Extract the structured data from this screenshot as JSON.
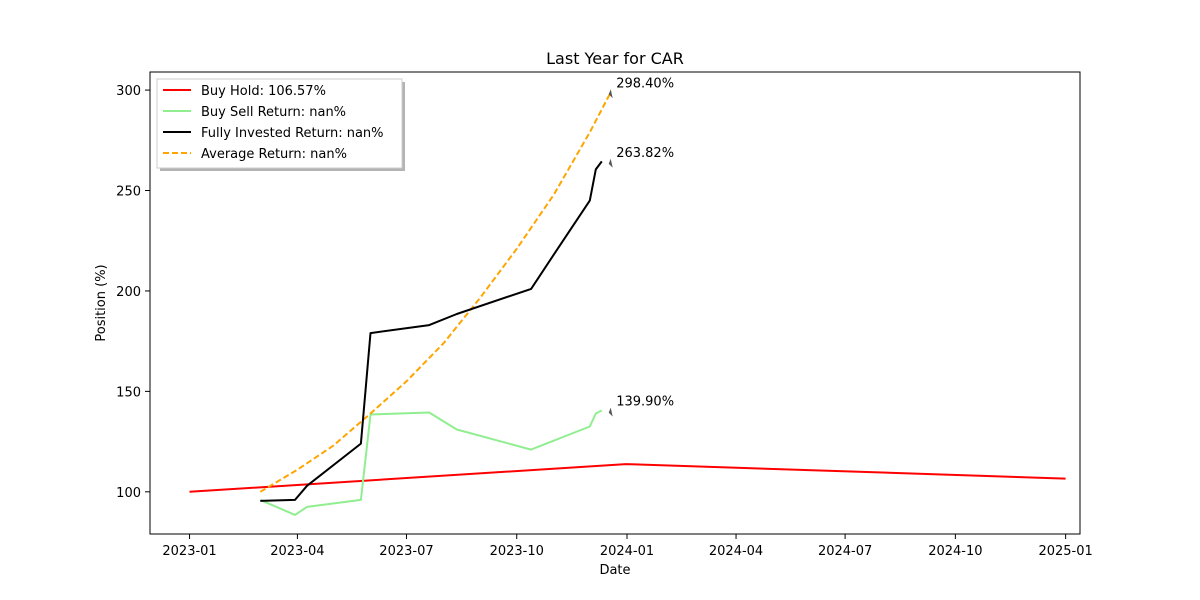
{
  "chart_data": {
    "type": "line",
    "title": "Last Year for CAR",
    "xlabel": "Date",
    "ylabel": "Position (%)",
    "xlim": [
      "2022-11-29",
      "2025-01-13"
    ],
    "ylim": [
      79,
      309
    ],
    "x_ticks": [
      "2023-01",
      "2023-04",
      "2023-07",
      "2023-10",
      "2024-01",
      "2024-04",
      "2024-07",
      "2024-10",
      "2025-01"
    ],
    "y_ticks": [
      100,
      150,
      200,
      250,
      300
    ],
    "grid": false,
    "legend_position": "upper-left",
    "series": [
      {
        "name": "Buy Hold: 106.57%",
        "color": "#ff0000",
        "style": "solid",
        "x": [
          "2023-01-01",
          "2023-12-31",
          "2025-01-01"
        ],
        "y": [
          100,
          113.8,
          106.57
        ]
      },
      {
        "name": "Buy Sell Return: nan%",
        "color": "#90ee90",
        "style": "solid",
        "x": [
          "2023-03-01",
          "2023-03-30",
          "2023-04-09",
          "2023-05-24",
          "2023-06-01",
          "2023-07-20",
          "2023-08-12",
          "2023-10-13",
          "2023-12-01",
          "2023-12-06",
          "2023-12-11"
        ],
        "y": [
          96,
          88.5,
          92.5,
          96,
          138.5,
          139.5,
          131,
          121,
          132.5,
          139,
          140.5
        ]
      },
      {
        "name": "Fully Invested Return: nan%",
        "color": "#000000",
        "style": "solid",
        "x": [
          "2023-03-01",
          "2023-03-30",
          "2023-04-09",
          "2023-05-24",
          "2023-06-01",
          "2023-07-20",
          "2023-08-12",
          "2023-10-13",
          "2023-11-03",
          "2023-12-01",
          "2023-12-06",
          "2023-12-11"
        ],
        "y": [
          95.5,
          96,
          103,
          124,
          179,
          183,
          188.5,
          201,
          220,
          245,
          260.5,
          264.5
        ]
      },
      {
        "name": "Average Return: nan%",
        "color": "#ffa500",
        "style": "dashed",
        "x": [
          "2023-03-01",
          "2023-04-01",
          "2023-05-01",
          "2023-06-01",
          "2023-07-01",
          "2023-08-01",
          "2023-09-01",
          "2023-10-01",
          "2023-11-01",
          "2023-12-01",
          "2023-12-18"
        ],
        "y": [
          100,
          111,
          123,
          139,
          155,
          174,
          197,
          221,
          248,
          279,
          298.4
        ]
      }
    ],
    "annotations": [
      {
        "text": "298.40%",
        "x": "2023-12-18",
        "y": 298.4
      },
      {
        "text": "263.82%",
        "x": "2023-12-18",
        "y": 263.82
      },
      {
        "text": "139.90%",
        "x": "2023-12-18",
        "y": 139.9
      }
    ]
  }
}
